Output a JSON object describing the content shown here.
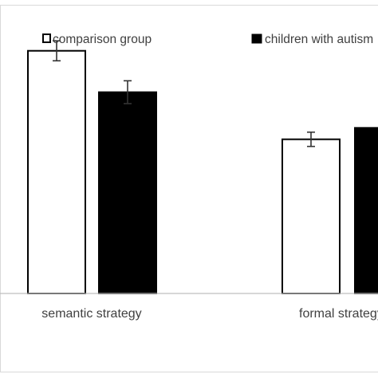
{
  "chart_data": {
    "type": "bar",
    "categories": [
      "semantic strategy",
      "formal strategy"
    ],
    "series": [
      {
        "name": "comparison group",
        "values": [
          8.5,
          5.4
        ],
        "errors": [
          0.35,
          0.25
        ],
        "color": "#ffffff"
      },
      {
        "name": "children with autism",
        "values": [
          7.05,
          5.8
        ],
        "errors": [
          0.4,
          null
        ],
        "color": "#000000"
      }
    ],
    "ylim": [
      0,
      10
    ],
    "legend_position": "top",
    "grid": false,
    "title": "",
    "xlabel": "",
    "ylabel": ""
  }
}
